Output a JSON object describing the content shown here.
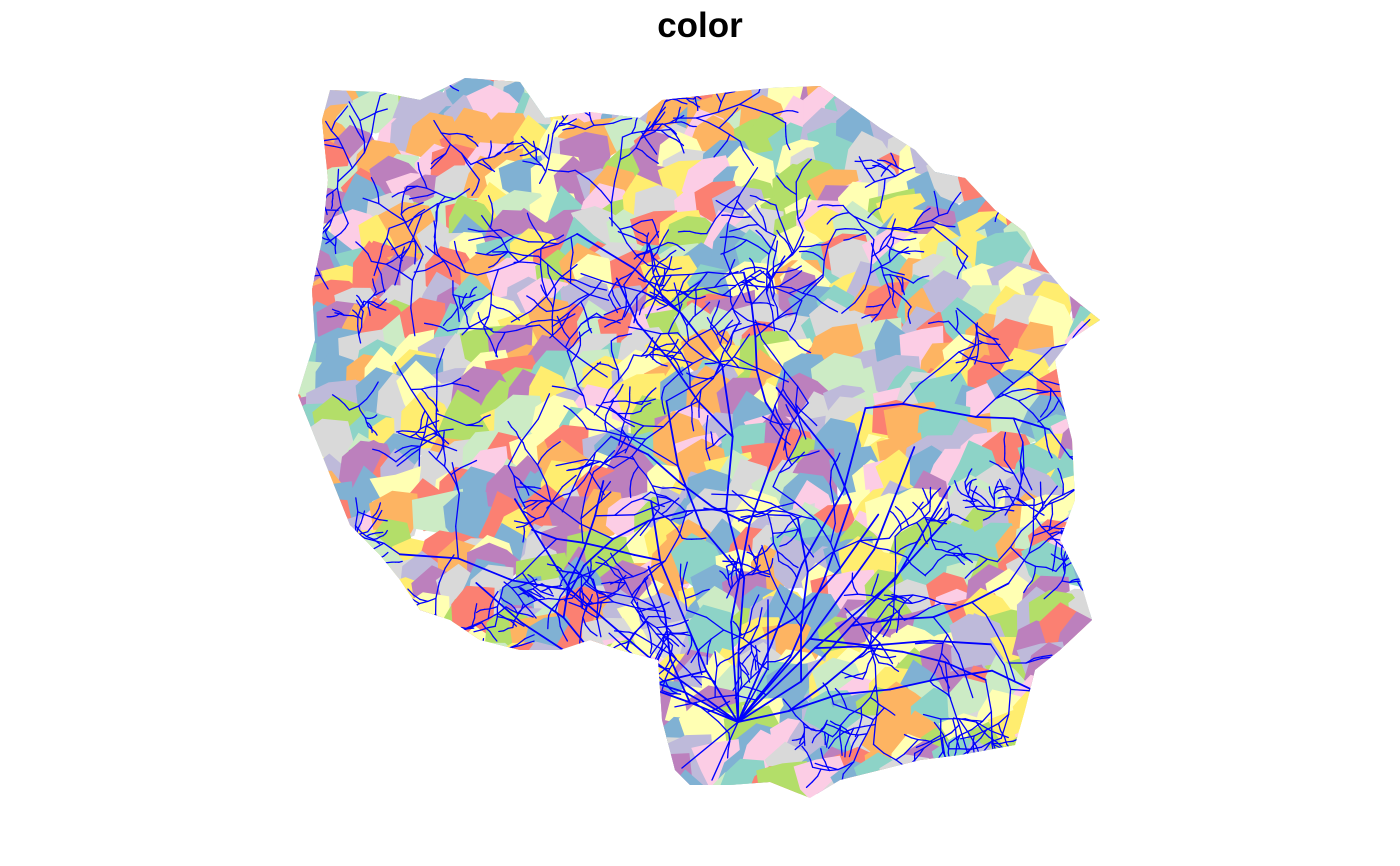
{
  "title": "color",
  "palette": [
    "#8DD3C7",
    "#FFFFB3",
    "#BEBADA",
    "#FB8072",
    "#80B1D3",
    "#FDB462",
    "#B3DE69",
    "#FCCDE5",
    "#D9D9D9",
    "#BC80BD",
    "#CCEBC5",
    "#FFED6F"
  ],
  "stream_color": "#0000FF",
  "background_color": "#FFFFFF"
}
